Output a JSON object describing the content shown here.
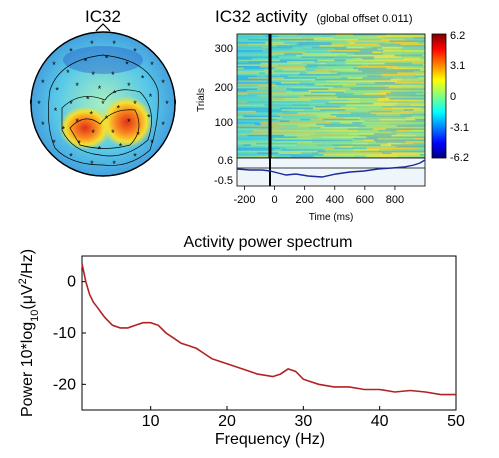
{
  "topomap": {
    "title": "IC32"
  },
  "erpimage": {
    "title_main": "IC32 activity",
    "title_sub": "(global offset 0.011)",
    "ylabel": "Trials",
    "yticks": [
      "300",
      "200",
      "100"
    ],
    "erp_yticks": [
      "0.6",
      "-0.5"
    ],
    "xticks": [
      "-200",
      "0",
      "200",
      "400",
      "600",
      "800"
    ],
    "xlabel": "Time (ms)",
    "colorbar_ticks": [
      "6.2",
      "3.1",
      "0",
      "-3.1",
      "-6.2"
    ]
  },
  "chart_data": {
    "type": "line",
    "title": "Activity power spectrum",
    "xlabel": "Frequency (Hz)",
    "ylabel": "Power 10*log10(μV²/Hz)",
    "xlim": [
      1,
      50
    ],
    "ylim": [
      -25,
      5
    ],
    "xticks": [
      "10",
      "20",
      "30",
      "40",
      "50"
    ],
    "yticks": [
      "0",
      "-10",
      "-20"
    ],
    "series": [
      {
        "color": "#b22222",
        "x": [
          1,
          1.5,
          2,
          2.5,
          3,
          3.5,
          4,
          5,
          6,
          7,
          8,
          9,
          10,
          11,
          12,
          13,
          14,
          15,
          16,
          17,
          18,
          19,
          20,
          22,
          24,
          26,
          27,
          28,
          29,
          30,
          32,
          34,
          36,
          38,
          40,
          42,
          44,
          46,
          48,
          50
        ],
        "y": [
          3.5,
          0,
          -2.5,
          -4,
          -5,
          -6,
          -7,
          -8.5,
          -9,
          -9,
          -8.5,
          -8,
          -8,
          -8.5,
          -10,
          -11,
          -12,
          -12.5,
          -13,
          -14,
          -15,
          -15.5,
          -16,
          -17,
          -18,
          -18.5,
          -18,
          -17,
          -17.5,
          -19,
          -20,
          -20.5,
          -20.5,
          -21,
          -21,
          -21.5,
          -21.2,
          -21.5,
          -22,
          -22
        ]
      }
    ]
  }
}
